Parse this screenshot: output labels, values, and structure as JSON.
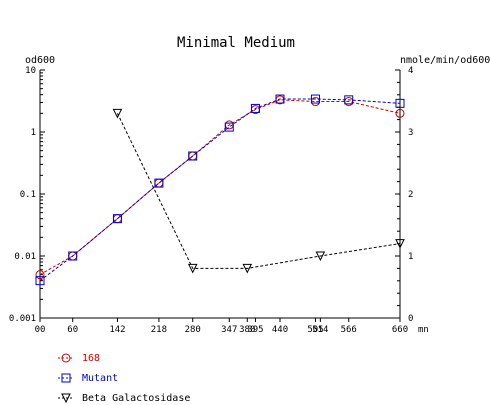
{
  "chart_data": {
    "type": "line",
    "title": "Minimal Medium",
    "ylabel_left": "od600",
    "ylabel_right": "nmole/min/od600",
    "x_unit": "mn",
    "x_ticks": [
      0,
      60,
      142,
      218,
      280,
      347,
      380,
      395,
      440,
      505,
      514,
      566,
      660
    ],
    "x_tick_labels": [
      "00",
      "60",
      "142",
      "218",
      "280",
      "347",
      "380",
      "395",
      "440",
      "505",
      "514",
      "566",
      "660"
    ],
    "xlim": [
      0,
      660
    ],
    "y_left": {
      "scale": "log",
      "ticks": [
        0.001,
        0.01,
        0.1,
        1,
        10
      ],
      "tick_labels": [
        "0.001",
        "0.01",
        "0.1",
        "1",
        "10"
      ],
      "lim": [
        0.001,
        10
      ]
    },
    "y_right": {
      "scale": "linear",
      "ticks": [
        0,
        1,
        2,
        3,
        4
      ],
      "tick_labels": [
        "0",
        "1",
        "2",
        "3",
        "4"
      ],
      "lim": [
        0,
        4
      ]
    },
    "series": [
      {
        "name": "168",
        "axis": "left",
        "color": "#cc0000",
        "marker": "circle",
        "x": [
          0,
          60,
          142,
          218,
          280,
          347,
          395,
          440,
          505,
          566,
          660
        ],
        "y": [
          0.005,
          0.01,
          0.04,
          0.15,
          0.41,
          1.3,
          2.3,
          3.3,
          3.1,
          3.1,
          2.0
        ]
      },
      {
        "name": "Mutant",
        "axis": "left",
        "color": "#0000cc",
        "marker": "square",
        "x": [
          0,
          60,
          142,
          218,
          280,
          347,
          395,
          440,
          505,
          566,
          660
        ],
        "y": [
          0.004,
          0.01,
          0.04,
          0.15,
          0.41,
          1.2,
          2.4,
          3.4,
          3.4,
          3.3,
          2.9
        ]
      },
      {
        "name": "Beta Galactosidase",
        "axis": "right",
        "color": "#000000",
        "marker": "triangle-down",
        "x": [
          142,
          280,
          380,
          514,
          660
        ],
        "y": [
          3.3,
          0.8,
          0.8,
          1.0,
          1.2
        ]
      }
    ]
  }
}
